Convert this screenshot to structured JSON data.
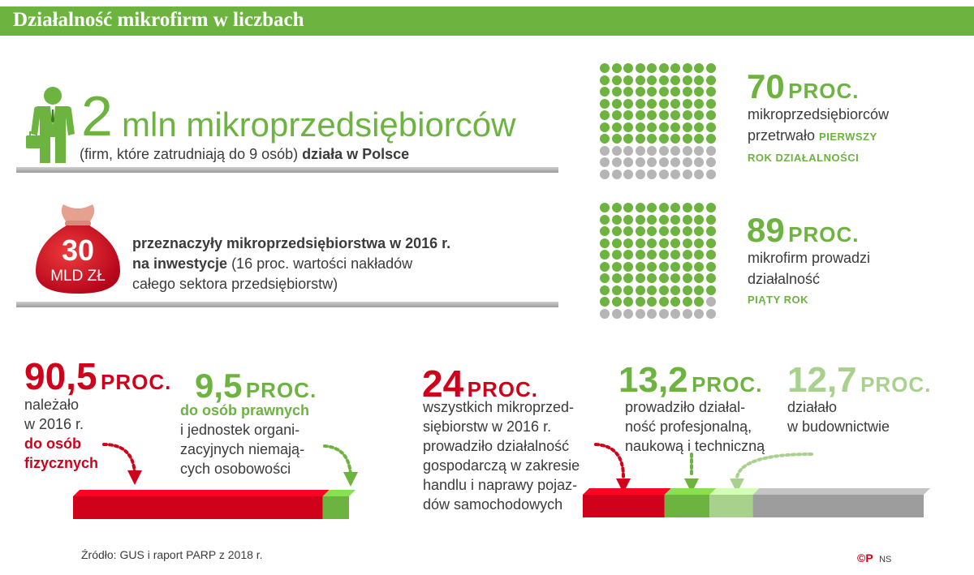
{
  "title": "Działalność mikrofirm w liczbach",
  "micro": {
    "number": "2",
    "unit": "mln mikroprzedsiębiorców",
    "sub_normal": "(firm, które zatrudniają do 9 osób) ",
    "sub_bold": "działa w Polsce"
  },
  "investment": {
    "bag_number": "30",
    "bag_unit": "MLD ZŁ",
    "line1_bold": "przeznaczyły mikroprzedsiębiorstwa w 2016 r.",
    "line2_bold": "na inwestycje",
    "line2_normal": " (16 proc. wartości nakładów",
    "line3_normal": "całego sektora przedsiębiorstw)"
  },
  "survived": {
    "percent": 70,
    "value": "70",
    "proc": "PROC.",
    "line1": "mikroprzedsiębiorców",
    "line2_normal": "przetrwało ",
    "line2_caps": "PIERWSZY",
    "line3_caps": "ROK DZIAŁALNOŚCI"
  },
  "fifth_year": {
    "percent": 89,
    "value": "89",
    "proc": "PROC.",
    "line1": "mikrofirm prowadzi",
    "line2": "działalność",
    "line3_caps": "PIĄTY ROK"
  },
  "ownership": {
    "natural": {
      "percent": 90.5,
      "value": "90,5",
      "proc": "PROC.",
      "lines": [
        "należało",
        "w 2016 r."
      ],
      "bold_lines": [
        "do osób",
        "fizycznych"
      ]
    },
    "legal": {
      "percent": 9.5,
      "value": "9,5",
      "proc": "PROC.",
      "bold_line": "do osób prawnych",
      "lines": [
        "i jednostek organi-",
        "zacyjnych niemają-",
        "cych osobowości"
      ]
    }
  },
  "sectors": {
    "trade": {
      "percent": 24,
      "value": "24",
      "proc": "PROC.",
      "lines": [
        "wszystkich mikroprzed-",
        "siębiorstw w 2016 r.",
        "prowadziło działalność",
        "gospodarczą w zakresie",
        "handlu i naprawy pojaz-",
        "dów samochodowych"
      ]
    },
    "professional": {
      "percent": 13.2,
      "value": "13,2",
      "proc": "PROC.",
      "lines": [
        "prowadziło działal-",
        "ność profesjonalną,",
        "naukową i techniczną"
      ]
    },
    "construction": {
      "percent": 12.7,
      "value": "12,7",
      "proc": "PROC.",
      "lines": [
        "działało",
        "w budownictwie"
      ]
    }
  },
  "colors": {
    "green": "#6cb33f",
    "light_green": "#a9d18e",
    "red": "#d0021b",
    "gray_dot": "#b5b5b5",
    "gray_bar": "#9d9d9d"
  },
  "source": "Źródło: GUS i raport PARP z 2018 r.",
  "credit_logo": "©P",
  "credit_initials": "NS"
}
